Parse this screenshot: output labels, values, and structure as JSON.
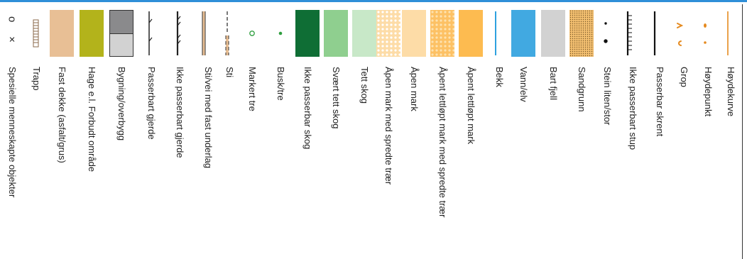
{
  "legend": {
    "items": [
      {
        "key": "special",
        "label": "Spesielle menneskapte objekter",
        "symbol_text": "o ×"
      },
      {
        "key": "stairs",
        "label": "Trapp"
      },
      {
        "key": "paved",
        "label": "Fast dekke (asfalt/grus)",
        "color": "#e8bf95"
      },
      {
        "key": "garden",
        "label": "Hage e.l. Forbudt område",
        "color": "#b3b31b"
      },
      {
        "key": "building",
        "label": "Bygning/overbygg",
        "colors": [
          "#8a8a8c",
          "#d2d2d2"
        ]
      },
      {
        "key": "fence-pass",
        "label": "Passerbart gjerde"
      },
      {
        "key": "fence-nopass",
        "label": "Ikke passerbart gjerde"
      },
      {
        "key": "road-firm",
        "label": "Sti/vei med fast underlag"
      },
      {
        "key": "path",
        "label": "Sti"
      },
      {
        "key": "tree",
        "label": "Markert tre",
        "color": "#2f9e3f"
      },
      {
        "key": "bush",
        "label": "Busk/tre",
        "color": "#2f9e3f"
      },
      {
        "key": "forest-impass",
        "label": "Ikke passerbar skog",
        "color": "#0f6e35"
      },
      {
        "key": "forest-vdense",
        "label": "Svært tett skog",
        "color": "#8fcf8f"
      },
      {
        "key": "forest-dense",
        "label": "Tett skog",
        "color": "#c8e8c8"
      },
      {
        "key": "open-trees",
        "label": "Åpen mark med spredte trær",
        "color": "#fddca7"
      },
      {
        "key": "open",
        "label": "Åpen mark",
        "color": "#fddca7"
      },
      {
        "key": "open-rough-trees",
        "label": "Åpent lettløpt mark med spredte trær",
        "color": "#fdc164"
      },
      {
        "key": "open-rough",
        "label": "Åpent lettløpt mark",
        "color": "#fdbb50"
      },
      {
        "key": "stream",
        "label": "Bekk",
        "color": "#2ea1df"
      },
      {
        "key": "water",
        "label": "Vann/elv",
        "color": "#41a9e1"
      },
      {
        "key": "rock",
        "label": "Bart fjell",
        "color": "#d2d2d2"
      },
      {
        "key": "sand",
        "label": "Sandgrunn",
        "color": "#f4c071"
      },
      {
        "key": "stone",
        "label": "Stein liten/stor"
      },
      {
        "key": "cliff-impass",
        "label": "Ikke passerbart stup"
      },
      {
        "key": "cliff-pass",
        "label": "Passerbar skrent"
      },
      {
        "key": "pit",
        "label": "Grop",
        "color": "#e58a1f"
      },
      {
        "key": "peak",
        "label": "Høydepunkt",
        "color": "#e58a1f"
      },
      {
        "key": "contour",
        "label": "Høydekurve",
        "color": "#e58a1f"
      }
    ]
  }
}
